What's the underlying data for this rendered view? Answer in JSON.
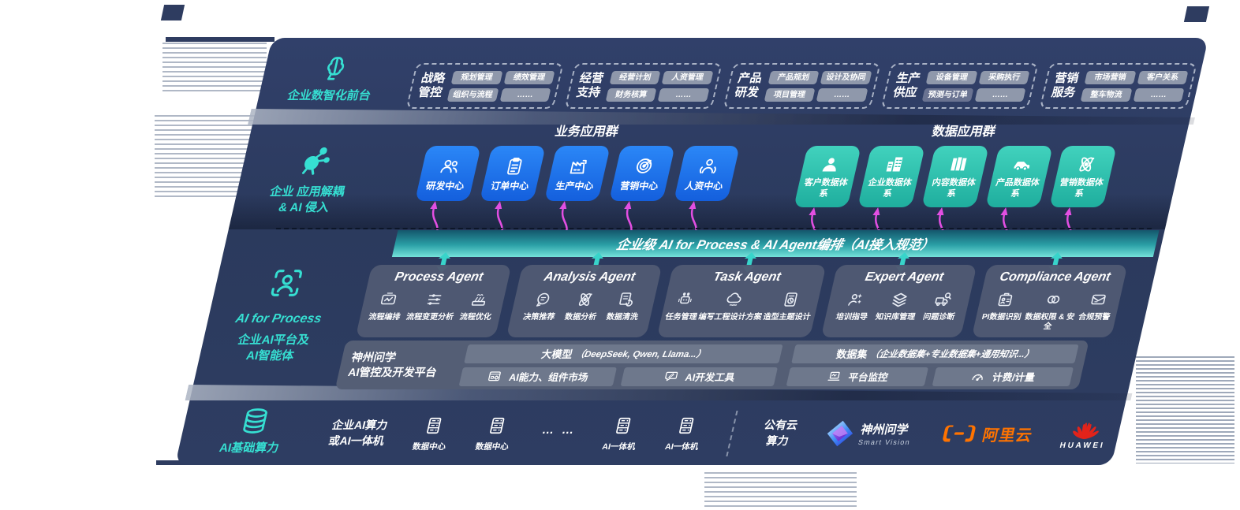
{
  "colors": {
    "panel_bg": "#2e3c60",
    "accent_teal": "#36dfd2",
    "magenta": "#e24fe2",
    "blue_app": "#1d72f2",
    "teal_app": "#2fc4b2",
    "pill_bg": "#8f98ab",
    "pill_dark_bg": "#6a7391",
    "agent_box_bg": "#505a72",
    "platform_outer_bg": "#545e75",
    "platform_inner_bg": "#6e788c",
    "bar_gradient_top": "#14566c",
    "bar_gradient_bottom": "#74e2da",
    "alibaba_orange": "#ff7300",
    "huawei_red": "#e2231a"
  },
  "rail": {
    "front": {
      "label": "企业数智化前台",
      "icon": "brain"
    },
    "apps": {
      "label_line1": "企业 应用解耦",
      "label_line2": "& AI 侵入",
      "icon": "molecule"
    },
    "ai": {
      "label_line1": "AI for Process",
      "label_line2": "企业AI平台及",
      "label_line3": "AI智能体",
      "icon": "scan-person"
    },
    "compute": {
      "label": "AI基础算力",
      "icon": "database"
    }
  },
  "front_groups": [
    {
      "title_line1": "战略",
      "title_line2": "管控",
      "pills": [
        "规划管理",
        "绩效管理",
        "组织与流程",
        "……"
      ]
    },
    {
      "title_line1": "经营",
      "title_line2": "支持",
      "pills": [
        "经营计划",
        "人资管理",
        "财务核算",
        "……"
      ]
    },
    {
      "title_line1": "产品",
      "title_line2": "研发",
      "pills": [
        "产品规划",
        "设计及协同",
        "项目管理",
        "……"
      ]
    },
    {
      "title_line1": "生产",
      "title_line2": "供应",
      "pills": [
        "设备管理",
        "采购执行",
        "预测与订单",
        "……"
      ]
    },
    {
      "title_line1": "营销",
      "title_line2": "服务",
      "pills": [
        "市场营销",
        "客户关系",
        "整车物流",
        "……"
      ]
    }
  ],
  "app_layer": {
    "business_header": "业务应用群",
    "data_header": "数据应用群",
    "business_apps": [
      {
        "label": "研发中心",
        "icon": "users"
      },
      {
        "label": "订单中心",
        "icon": "clipboard"
      },
      {
        "label": "生产中心",
        "icon": "factory"
      },
      {
        "label": "营销中心",
        "icon": "target"
      },
      {
        "label": "人资中心",
        "icon": "person-cycle"
      }
    ],
    "data_apps": [
      {
        "label": "客户数据体系",
        "icon": "person"
      },
      {
        "label": "企业数据体系",
        "icon": "building"
      },
      {
        "label": "内容数据体系",
        "icon": "columns"
      },
      {
        "label": "产品数据体系",
        "icon": "car"
      },
      {
        "label": "营销数据体系",
        "icon": "atom"
      }
    ]
  },
  "orchestration_bar": {
    "label": "企业级 AI for Process & AI Agent编排（AI接入规范）"
  },
  "agents": [
    {
      "title": "Process Agent",
      "items": [
        {
          "label": "流程编排",
          "icon": "flow"
        },
        {
          "label": "流程变更分析",
          "icon": "sliders"
        },
        {
          "label": "流程优化",
          "icon": "stack-wave"
        }
      ]
    },
    {
      "title": "Analysis Agent",
      "items": [
        {
          "label": "决策推荐",
          "icon": "head-chat"
        },
        {
          "label": "数据分析",
          "icon": "atom"
        },
        {
          "label": "数据清洗",
          "icon": "doc-refresh"
        }
      ]
    },
    {
      "title": "Task Agent",
      "items": [
        {
          "label": "任务管理",
          "icon": "robot"
        },
        {
          "label": "编写工程设计方案",
          "icon": "cloud-edit"
        },
        {
          "label": "造型主题设计",
          "icon": "tablet-check"
        }
      ]
    },
    {
      "title": "Expert Agent",
      "items": [
        {
          "label": "培训指导",
          "icon": "person-spark"
        },
        {
          "label": "知识库管理",
          "icon": "layers"
        },
        {
          "label": "问题诊断",
          "icon": "truck-search"
        }
      ]
    },
    {
      "title": "Compliance Agent",
      "items": [
        {
          "label": "PI数据识别",
          "icon": "id-card"
        },
        {
          "label": "数据权限 & 安全",
          "icon": "rings"
        },
        {
          "label": "合规预警",
          "icon": "mail-alert"
        }
      ]
    }
  ],
  "platform": {
    "label_line1": "神州问学",
    "label_line2": "AI管控及开发平台",
    "model_title": "大模型",
    "model_sub": "（DeepSeek, Qwen, Llama...）",
    "model_cells": [
      {
        "label": "AI能力、组件市场",
        "icon": "window-gear"
      },
      {
        "label": "AI开发工具",
        "icon": "chat-tools"
      }
    ],
    "data_title": "数据集",
    "data_sub": "（企业数据集+专业数据集+通用知识...）",
    "data_cells": [
      {
        "label": "平台监控",
        "icon": "laptop-pulse"
      },
      {
        "label": "计费/计量",
        "icon": "gauge"
      }
    ]
  },
  "compute_layer": {
    "cluster_line1": "企业AI算力",
    "cluster_line2": "或AI一体机",
    "nodes": [
      {
        "label": "数据中心",
        "icon": "server"
      },
      {
        "label": "数据中心",
        "icon": "server"
      }
    ],
    "ellipsis": "…  …",
    "nodes2": [
      {
        "label": "AI一体机",
        "icon": "server"
      },
      {
        "label": "AI一体机",
        "icon": "server"
      }
    ],
    "cloud_line1": "公有云",
    "cloud_line2": "算力",
    "partners": {
      "szwx_name": "神州问学",
      "szwx_sub": "Smart Vision",
      "szwx_icon": "szwx-logo",
      "ali_name": "阿里云",
      "ali_icon": "ali-logo",
      "huawei_name": "HUAWEI",
      "huawei_icon": "huawei-flower"
    }
  }
}
